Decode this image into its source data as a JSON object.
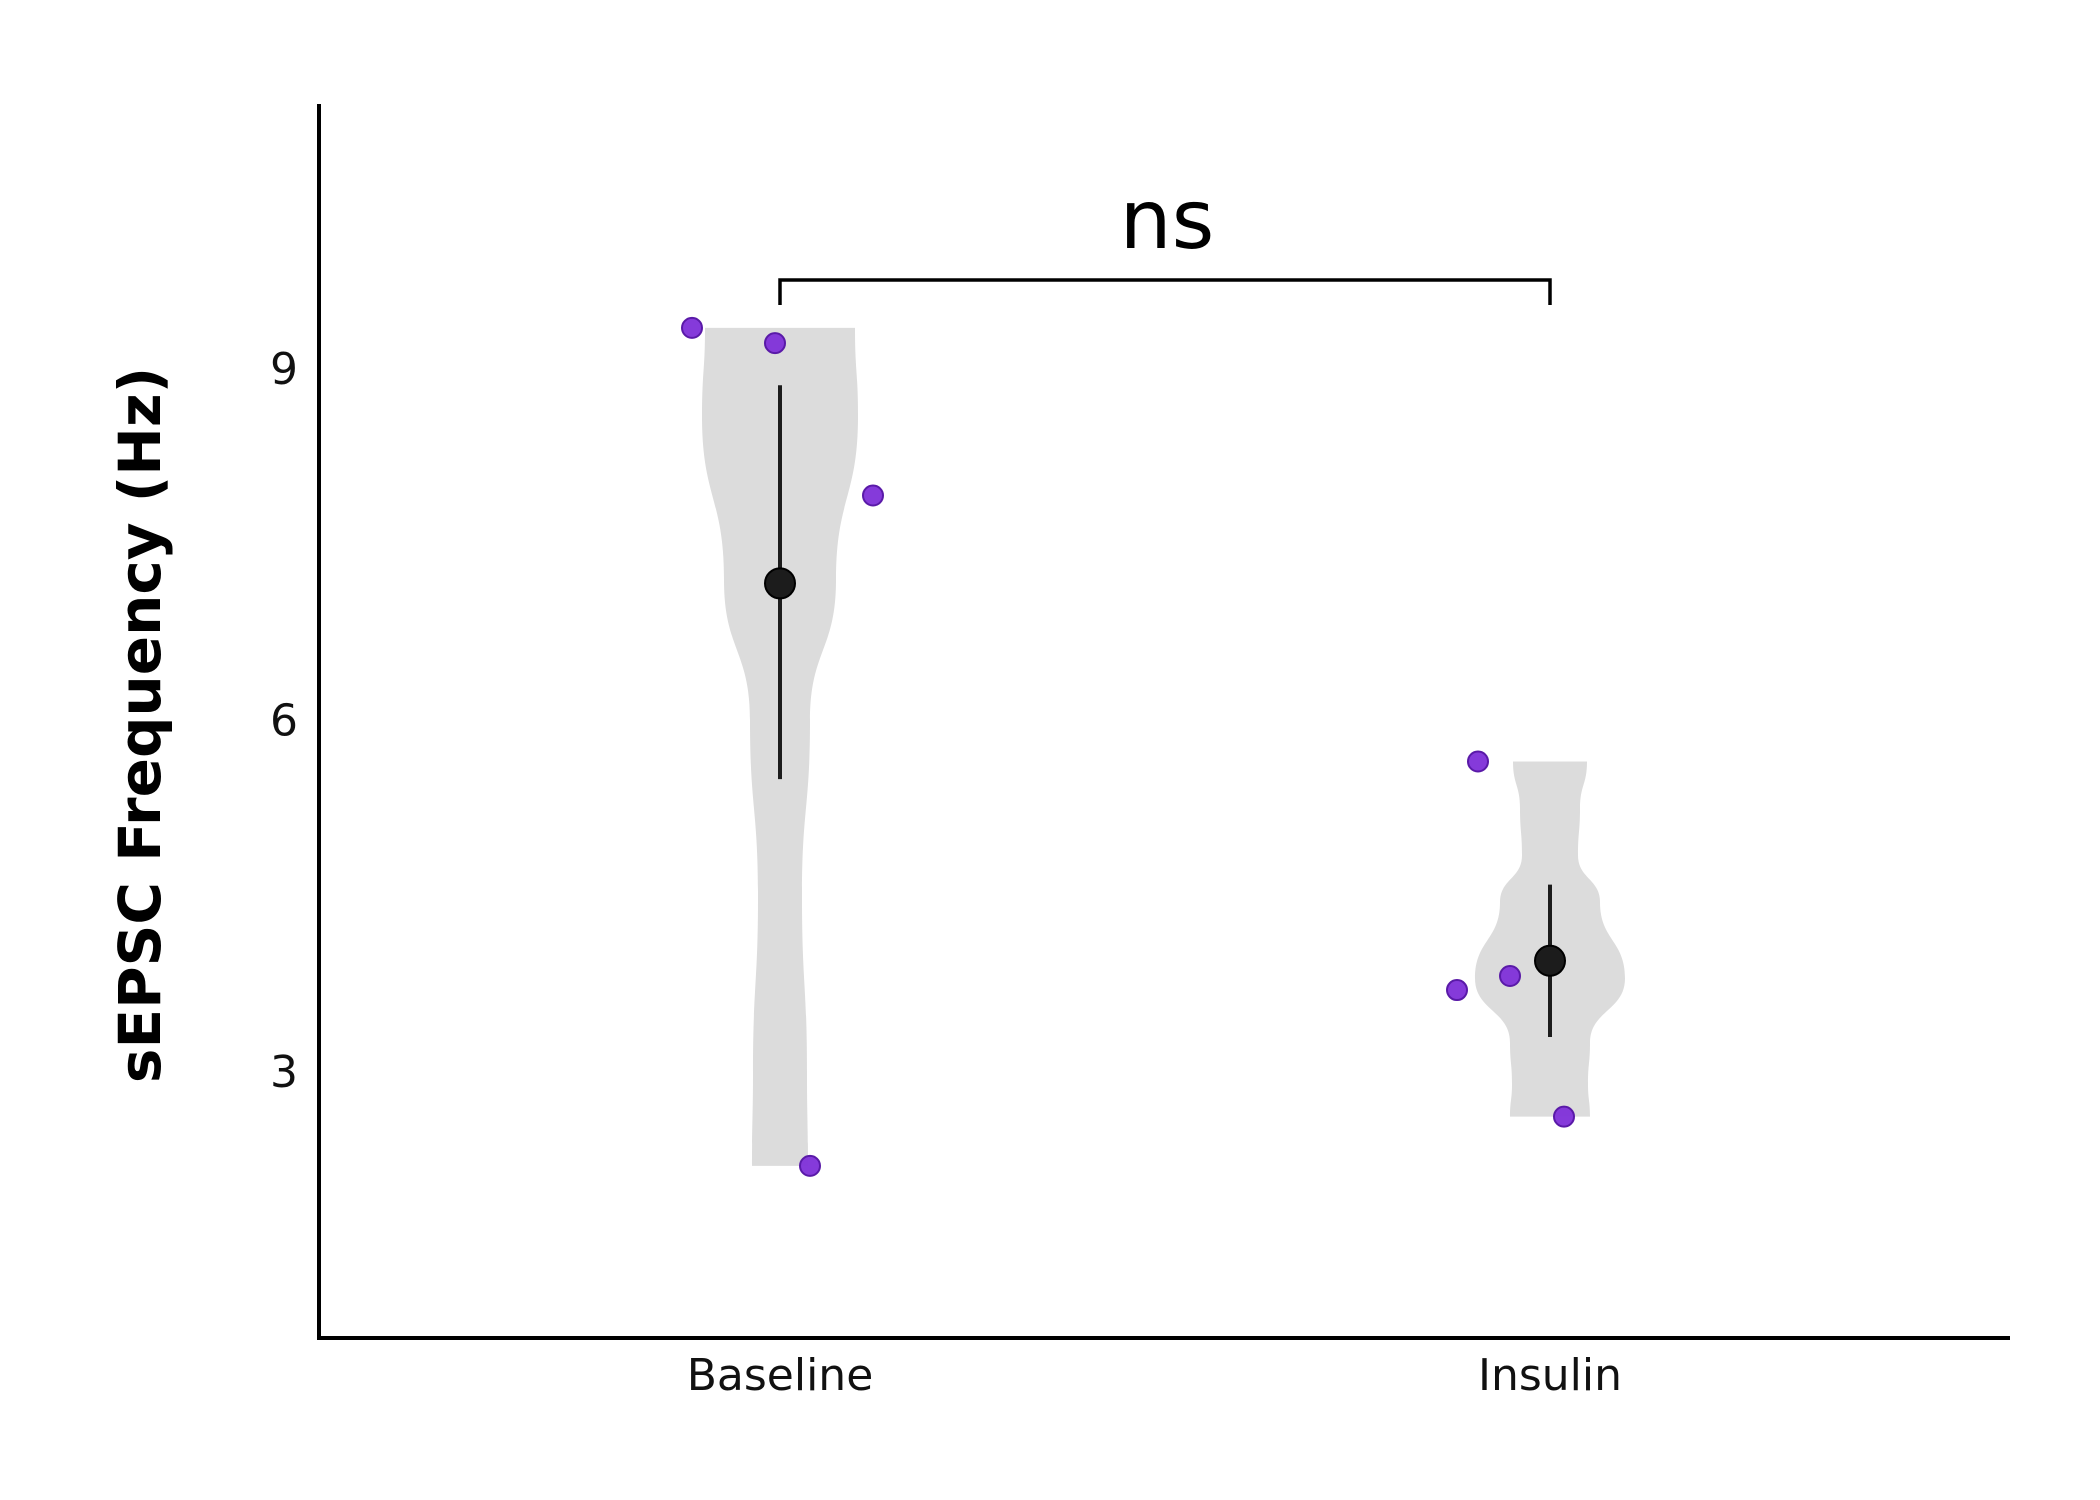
{
  "chart_data": {
    "type": "violin",
    "ylabel": "sEPSC Frequency (Hz)",
    "xlabel": "",
    "ylim": [
      0.8,
      11.3
    ],
    "yticks": [
      3,
      6,
      9
    ],
    "categories": [
      "Baseline",
      "Insulin"
    ],
    "groups": [
      {
        "name": "Baseline",
        "points": [
          9.35,
          9.22,
          7.92,
          2.2
        ],
        "mean": 7.17,
        "error_low": 5.5,
        "error_high": 8.86
      },
      {
        "name": "Insulin",
        "points": [
          5.65,
          3.82,
          3.7,
          2.62
        ],
        "mean": 3.95,
        "error_low": 3.3,
        "error_high": 4.6
      }
    ],
    "comparison": {
      "from": "Baseline",
      "to": "Insulin",
      "label": "ns"
    },
    "colors": {
      "points": "#7e2fd8",
      "violin": "#dcdcdc",
      "mean": "#1c1c1c"
    },
    "grid": false,
    "legend": "none"
  }
}
